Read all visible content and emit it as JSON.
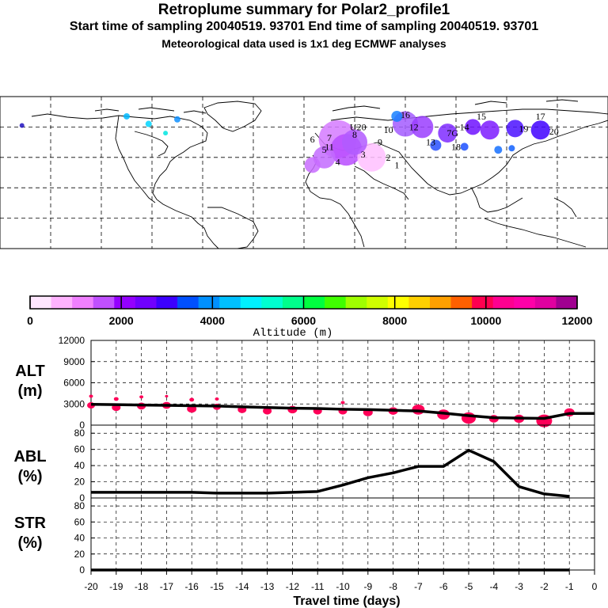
{
  "header": {
    "title": "Retroplume summary for Polar2_profile1",
    "sampling": "Start time of sampling 20040519. 93701     End time of sampling 20040519. 93701",
    "met": "Meteorological data used is 1x1 deg ECMWF analyses"
  },
  "colorbar": {
    "label": "Altitude (m)",
    "tick_labels": [
      "0",
      "2000",
      "4000",
      "6000",
      "8000",
      "10000",
      "12000"
    ],
    "tick_values": [
      0,
      2000,
      4000,
      6000,
      8000,
      10000,
      12000
    ],
    "colors": [
      "#ffe6ff",
      "#ffb3ff",
      "#f080ff",
      "#c050ff",
      "#9400ff",
      "#7000ff",
      "#3c00ff",
      "#0050ff",
      "#0090ff",
      "#00c0ff",
      "#00f0ff",
      "#00ffd0",
      "#00ff8c",
      "#00ff40",
      "#40ff00",
      "#a0ff00",
      "#d0ff00",
      "#ffff00",
      "#ffd000",
      "#ffa000",
      "#ff6000",
      "#ff0050",
      "#ff0090",
      "#ff00a8",
      "#e000a0",
      "#a00090"
    ]
  },
  "map": {
    "labels": [
      {
        "text": "1",
        "lon": 55,
        "lat": 45
      },
      {
        "text": "2",
        "lon": 50,
        "lat": 50
      },
      {
        "text": "3",
        "lon": 35,
        "lat": 52
      },
      {
        "text": "4",
        "lon": 20,
        "lat": 47
      },
      {
        "text": "5",
        "lon": 12,
        "lat": 55
      },
      {
        "text": "6",
        "lon": 5,
        "lat": 62
      },
      {
        "text": "7",
        "lon": 15,
        "lat": 63
      },
      {
        "text": "8",
        "lon": 30,
        "lat": 65
      },
      {
        "text": "9",
        "lon": 45,
        "lat": 60
      },
      {
        "text": "10",
        "lon": 50,
        "lat": 68
      },
      {
        "text": "11",
        "lon": 15,
        "lat": 57
      },
      {
        "text": "12",
        "lon": 65,
        "lat": 70
      },
      {
        "text": "13",
        "lon": 75,
        "lat": 60
      },
      {
        "text": "14",
        "lon": 95,
        "lat": 70
      },
      {
        "text": "15",
        "lon": 105,
        "lat": 77
      },
      {
        "text": "16",
        "lon": 60,
        "lat": 78
      },
      {
        "text": "17",
        "lon": 140,
        "lat": 77
      },
      {
        "text": "18",
        "lon": 90,
        "lat": 57
      },
      {
        "text": "19",
        "lon": 130,
        "lat": 69
      },
      {
        "text": "20",
        "lon": 148,
        "lat": 67
      },
      {
        "text": "U20",
        "lon": 32,
        "lat": 70
      },
      {
        "text": "7G",
        "lon": 88,
        "lat": 66
      }
    ]
  },
  "chart_data": [
    {
      "type": "line",
      "title": "ALT (m)",
      "label_top": "ALT",
      "label_bottom": "(m)",
      "xlabel": "Travel time (days)",
      "x": [
        -20,
        -19,
        -18,
        -17,
        -16,
        -15,
        -14,
        -13,
        -12,
        -11,
        -10,
        -9,
        -8,
        -7,
        -6,
        -5,
        -4,
        -3,
        -2,
        -1,
        0
      ],
      "values": [
        2950,
        2900,
        2850,
        2800,
        2750,
        2700,
        2600,
        2500,
        2400,
        2350,
        2250,
        2200,
        2100,
        2000,
        1700,
        1350,
        1050,
        1000,
        950,
        1650,
        1650
      ],
      "ylim": [
        0,
        12000
      ],
      "y_ticks": [
        "0",
        "3000",
        "6000",
        "9000",
        "12000"
      ],
      "y_tick_values": [
        0,
        3000,
        6000,
        9000,
        12000
      ],
      "plume_points": [
        {
          "day": -20,
          "alt": 2800,
          "size": 10
        },
        {
          "day": -20,
          "alt": 4100,
          "size": 5
        },
        {
          "day": -19,
          "alt": 2500,
          "size": 11
        },
        {
          "day": -19,
          "alt": 3700,
          "size": 6
        },
        {
          "day": -18,
          "alt": 2700,
          "size": 11
        },
        {
          "day": -18,
          "alt": 4000,
          "size": 5
        },
        {
          "day": -17,
          "alt": 2800,
          "size": 11
        },
        {
          "day": -17,
          "alt": 4100,
          "size": 4
        },
        {
          "day": -16,
          "alt": 2300,
          "size": 12
        },
        {
          "day": -16,
          "alt": 3600,
          "size": 6
        },
        {
          "day": -15,
          "alt": 2600,
          "size": 10
        },
        {
          "day": -15,
          "alt": 3700,
          "size": 5
        },
        {
          "day": -14,
          "alt": 2200,
          "size": 11
        },
        {
          "day": -13,
          "alt": 2000,
          "size": 11
        },
        {
          "day": -12,
          "alt": 2200,
          "size": 12
        },
        {
          "day": -11,
          "alt": 2000,
          "size": 11
        },
        {
          "day": -10,
          "alt": 2000,
          "size": 11
        },
        {
          "day": -10,
          "alt": 3200,
          "size": 5
        },
        {
          "day": -9,
          "alt": 1800,
          "size": 12
        },
        {
          "day": -8,
          "alt": 2000,
          "size": 12
        },
        {
          "day": -7,
          "alt": 2200,
          "size": 16
        },
        {
          "day": -6,
          "alt": 1500,
          "size": 16
        },
        {
          "day": -5,
          "alt": 1000,
          "size": 18
        },
        {
          "day": -4,
          "alt": 900,
          "size": 12
        },
        {
          "day": -3,
          "alt": 900,
          "size": 13
        },
        {
          "day": -2,
          "alt": 600,
          "size": 20
        },
        {
          "day": -1,
          "alt": 1800,
          "size": 13
        }
      ]
    },
    {
      "type": "line",
      "title": "ABL (%)",
      "label_top": "ABL",
      "label_bottom": "(%)",
      "xlabel": "Travel time (days)",
      "x": [
        -20,
        -19,
        -18,
        -17,
        -16,
        -15,
        -14,
        -13,
        -12,
        -11,
        -10,
        -9,
        -8,
        -7,
        -6,
        -5,
        -4,
        -3,
        -2,
        -1
      ],
      "values": [
        7,
        7,
        7,
        7,
        7,
        6,
        6,
        6,
        7,
        8,
        16,
        25,
        31,
        39,
        39,
        59,
        45,
        14,
        5,
        2
      ],
      "ylim": [
        0,
        90
      ],
      "y_ticks": [
        "0",
        "20",
        "40",
        "60",
        "80"
      ],
      "y_tick_values": [
        0,
        20,
        40,
        60,
        80
      ]
    },
    {
      "type": "line",
      "title": "STR (%)",
      "label_top": "STR",
      "label_bottom": "(%)",
      "xlabel": "Travel time (days)",
      "x": [
        -20,
        -19,
        -18,
        -17,
        -16,
        -15,
        -14,
        -13,
        -12,
        -11,
        -10,
        -9,
        -8,
        -7,
        -6,
        -5,
        -4,
        -3,
        -2,
        -1
      ],
      "values": [
        0,
        0,
        0,
        0,
        0,
        0,
        0,
        0,
        0,
        0,
        0,
        0,
        0,
        0,
        0,
        0,
        0,
        0,
        0,
        0
      ],
      "ylim": [
        0,
        90
      ],
      "y_ticks": [
        "0",
        "20",
        "40",
        "60",
        "80"
      ],
      "y_tick_values": [
        0,
        20,
        40,
        60,
        80
      ],
      "x_ticks": [
        "-20",
        "-19",
        "-18",
        "-17",
        "-16",
        "-15",
        "-14",
        "-13",
        "-12",
        "-11",
        "-10",
        "-9",
        "-8",
        "-7",
        "-6",
        "-5",
        "-4",
        "-3",
        "-2",
        "-1",
        "0"
      ],
      "x_tick_values": [
        -20,
        -19,
        -18,
        -17,
        -16,
        -15,
        -14,
        -13,
        -12,
        -11,
        -10,
        -9,
        -8,
        -7,
        -6,
        -5,
        -4,
        -3,
        -2,
        -1,
        0
      ]
    }
  ]
}
